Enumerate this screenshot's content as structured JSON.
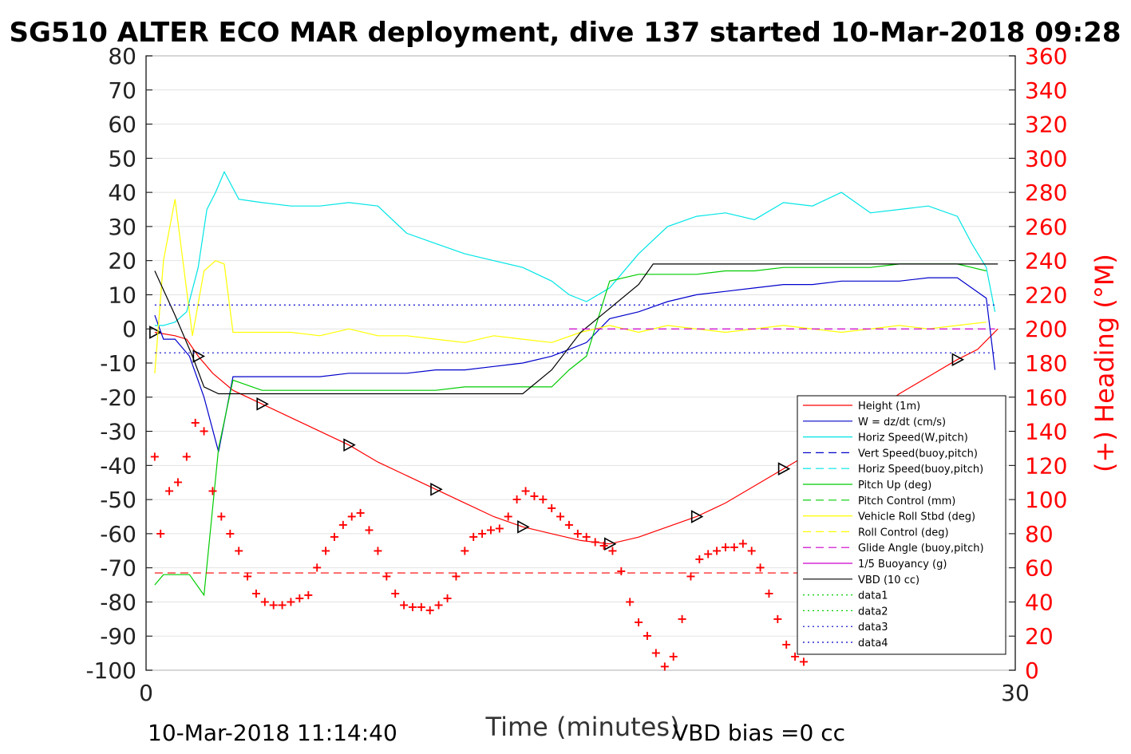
{
  "chart_data": {
    "type": "line",
    "title": "SG510 ALTER ECO MAR deployment, dive 137 started 10-Mar-2018 09:28",
    "xlabel": "Time (minutes)",
    "ylabel_right": "(+) Heading (°M)",
    "footer_left": "10-Mar-2018 11:14:40",
    "footer_right": "VBD bias =0 cc",
    "xlim": [
      0,
      30
    ],
    "ylim": [
      -100,
      80
    ],
    "ylim_right": [
      0,
      360
    ],
    "xticks": [
      "0",
      "30"
    ],
    "yticks_left": [
      "80",
      "70",
      "60",
      "50",
      "40",
      "30",
      "20",
      "10",
      "0",
      "-10",
      "-20",
      "-30",
      "-40",
      "-50",
      "-60",
      "-70",
      "-80",
      "-90",
      "-100"
    ],
    "yticks_right": [
      "360",
      "340",
      "320",
      "300",
      "280",
      "260",
      "240",
      "220",
      "200",
      "180",
      "160",
      "140",
      "120",
      "100",
      "80",
      "60",
      "40",
      "20",
      "0"
    ],
    "grid": "horizontal",
    "legend_position": "lower-right",
    "colors": {
      "height": "#ff0000",
      "w": "#0000cc",
      "horiz": "#00e5e5",
      "pitch": "#00cc00",
      "roll": "#ffff00",
      "glide": "#cc00cc",
      "vbd": "#000000",
      "heading": "#ff0000"
    },
    "legend": [
      {
        "name": "Height (1m)",
        "color": "#ff0000",
        "style": "solid"
      },
      {
        "name": "W = dz/dt (cm/s)",
        "color": "#0000cc",
        "style": "solid"
      },
      {
        "name": "Horiz Speed(W,pitch)",
        "color": "#00e5e5",
        "style": "solid"
      },
      {
        "name": "Vert Speed(buoy,pitch)",
        "color": "#0000cc",
        "style": "dashed"
      },
      {
        "name": "Horiz Speed(buoy,pitch)",
        "color": "#00e5e5",
        "style": "dashed"
      },
      {
        "name": "Pitch Up (deg)",
        "color": "#00cc00",
        "style": "solid"
      },
      {
        "name": "Pitch Control (mm)",
        "color": "#00cc00",
        "style": "dashed"
      },
      {
        "name": "Vehicle Roll Stbd (deg)",
        "color": "#ffff00",
        "style": "solid"
      },
      {
        "name": "Roll Control (deg)",
        "color": "#ffff00",
        "style": "dashed"
      },
      {
        "name": "Glide Angle (buoy,pitch)",
        "color": "#cc00cc",
        "style": "dashed"
      },
      {
        "name": "1/5 Buoyancy (g)",
        "color": "#cc00cc",
        "style": "solid"
      },
      {
        "name": "VBD (10 cc)",
        "color": "#000000",
        "style": "solid"
      },
      {
        "name": "data1",
        "color": "#00cc00",
        "style": "dotted"
      },
      {
        "name": "data2",
        "color": "#00cc00",
        "style": "dotted"
      },
      {
        "name": "data3",
        "color": "#0000cc",
        "style": "dotted"
      },
      {
        "name": "data4",
        "color": "#0000cc",
        "style": "dotted"
      }
    ],
    "series": [
      {
        "name": "Height (1m)",
        "x": [
          0.3,
          1.0,
          1.4,
          1.8,
          2.3,
          3.0,
          4.0,
          5.0,
          6.0,
          7.0,
          8.0,
          9.0,
          10.0,
          11.0,
          12.0,
          13.0,
          14.0,
          15.0,
          16.0,
          17.0,
          18.0,
          19.0,
          20.0,
          21.0,
          22.0,
          23.0,
          24.0,
          25.0,
          26.0,
          27.0,
          28.0,
          28.7,
          29.4
        ],
        "y": [
          -1,
          -2,
          -3,
          -8,
          -13,
          -18,
          -22,
          -26,
          -30,
          -34,
          -39,
          -43,
          -47,
          -51,
          -55,
          -58,
          -60,
          -62,
          -63,
          -61,
          -58,
          -55,
          -51,
          -46,
          -41,
          -36,
          -31,
          -25,
          -19,
          -14,
          -9,
          -6,
          0
        ]
      },
      {
        "name": "W = dz/dt (cm/s)",
        "x": [
          0.3,
          0.6,
          1.0,
          1.5,
          2.0,
          2.5,
          3.0,
          4.0,
          5.0,
          6.0,
          7.0,
          8.0,
          9.0,
          10.0,
          11.0,
          12.0,
          13.0,
          14.0,
          14.6,
          15.2,
          16.0,
          17.0,
          18.0,
          19.0,
          20.0,
          21.0,
          22.0,
          23.0,
          24.0,
          25.0,
          26.0,
          27.0,
          28.0,
          28.5,
          29.0,
          29.3
        ],
        "y": [
          4,
          -3,
          -3,
          -8,
          -20,
          -36,
          -14,
          -14,
          -14,
          -14,
          -13,
          -13,
          -13,
          -12,
          -12,
          -11,
          -10,
          -8,
          -6,
          -4,
          3,
          5,
          8,
          10,
          11,
          12,
          13,
          13,
          14,
          14,
          14,
          15,
          15,
          12,
          9,
          -12
        ]
      },
      {
        "name": "Horiz Speed(W,pitch)",
        "x": [
          0.3,
          0.6,
          1.0,
          1.4,
          1.8,
          2.1,
          2.4,
          2.7,
          3.2,
          4.0,
          5.0,
          6.0,
          7.0,
          8.0,
          9.0,
          10.0,
          11.0,
          12.0,
          13.0,
          14.0,
          14.6,
          15.2,
          16.0,
          17.0,
          18.0,
          19.0,
          20.0,
          21.0,
          22.0,
          23.0,
          24.0,
          25.0,
          26.0,
          27.0,
          28.0,
          28.5,
          29.0,
          29.3
        ],
        "y": [
          1,
          1,
          2,
          5,
          18,
          35,
          40,
          46,
          38,
          37,
          36,
          36,
          37,
          36,
          28,
          25,
          22,
          20,
          18,
          14,
          10,
          8,
          12,
          22,
          30,
          33,
          34,
          32,
          37,
          36,
          40,
          34,
          35,
          36,
          33,
          25,
          18,
          5
        ]
      },
      {
        "name": "Pitch Up (deg)",
        "x": [
          0.3,
          0.6,
          1.0,
          1.5,
          2.0,
          2.5,
          3.0,
          4.0,
          5.0,
          6.0,
          7.0,
          8.0,
          9.0,
          10.0,
          11.0,
          12.0,
          13.0,
          14.0,
          14.6,
          15.2,
          16.0,
          17.0,
          18.0,
          19.0,
          20.0,
          21.0,
          22.0,
          23.0,
          24.0,
          25.0,
          26.0,
          27.0,
          28.0,
          28.5,
          29.0
        ],
        "y": [
          -75,
          -72,
          -72,
          -72,
          -78,
          -35,
          -15,
          -18,
          -18,
          -18,
          -18,
          -18,
          -18,
          -18,
          -17,
          -17,
          -17,
          -17,
          -12,
          -8,
          14,
          16,
          16,
          16,
          17,
          17,
          18,
          18,
          18,
          18,
          19,
          19,
          19,
          18,
          17
        ]
      },
      {
        "name": "Vehicle Roll Stbd (deg)",
        "x": [
          0.3,
          0.6,
          1.0,
          1.3,
          1.6,
          2.0,
          2.4,
          2.7,
          3.0,
          3.5,
          4.0,
          5.0,
          6.0,
          7.0,
          8.0,
          9.0,
          10.0,
          11.0,
          12.0,
          13.0,
          14.0,
          15.0,
          16.0,
          17.0,
          18.0,
          19.0,
          20.0,
          21.0,
          22.0,
          23.0,
          24.0,
          25.0,
          26.0,
          27.0,
          28.0,
          29.0
        ],
        "y": [
          -13,
          20,
          38,
          18,
          -2,
          17,
          20,
          19,
          -1,
          -1,
          -1,
          -1,
          -2,
          0,
          -2,
          -2,
          -3,
          -4,
          -2,
          -3,
          -4,
          -1,
          1,
          -1,
          1,
          0,
          -1,
          0,
          1,
          0,
          -1,
          0,
          1,
          0,
          1,
          2
        ]
      },
      {
        "name": "VBD (10 cc)",
        "x": [
          0.3,
          1.0,
          1.6,
          2.0,
          2.5,
          5.0,
          8.0,
          11.0,
          12.6,
          13.0,
          14.0,
          15.0,
          16.0,
          17.0,
          17.5,
          18.0,
          21.0,
          24.0,
          27.0,
          29.0,
          29.4
        ],
        "y": [
          17,
          4,
          -8,
          -17,
          -19,
          -19,
          -19,
          -19,
          -19,
          -19,
          -12,
          -1,
          6,
          13,
          19,
          19,
          19,
          19,
          19,
          19,
          19
        ]
      },
      {
        "name": "(+) Heading (°M)",
        "axis": "right",
        "x": [
          0.3,
          0.5,
          0.8,
          1.1,
          1.4,
          1.7,
          2.0,
          2.3,
          2.6,
          2.9,
          3.2,
          3.5,
          3.8,
          4.1,
          4.4,
          4.7,
          5.0,
          5.3,
          5.6,
          5.9,
          6.2,
          6.5,
          6.8,
          7.1,
          7.4,
          7.7,
          8.0,
          8.3,
          8.6,
          8.9,
          9.2,
          9.5,
          9.8,
          10.1,
          10.4,
          10.7,
          11.0,
          11.3,
          11.6,
          11.9,
          12.2,
          12.5,
          12.8,
          13.1,
          13.4,
          13.7,
          14.0,
          14.3,
          14.6,
          14.9,
          15.2,
          15.5,
          15.8,
          16.1,
          16.4,
          16.7,
          17.0,
          17.3,
          17.6,
          17.9,
          18.2,
          18.5,
          18.8,
          19.1,
          19.4,
          19.7,
          20.0,
          20.3,
          20.6,
          20.9,
          21.2,
          21.5,
          21.8,
          22.1,
          22.4,
          22.7,
          23.0,
          23.3,
          23.6,
          23.9,
          24.2,
          24.5,
          24.8,
          25.1,
          25.4,
          25.7,
          26.0,
          26.3,
          26.6,
          26.9,
          27.2,
          27.5,
          27.8,
          28.1,
          28.4,
          28.7,
          29.0,
          29.3
        ],
        "y": [
          125,
          80,
          105,
          110,
          125,
          145,
          140,
          105,
          90,
          80,
          70,
          55,
          45,
          40,
          38,
          38,
          40,
          42,
          44,
          60,
          70,
          78,
          85,
          90,
          92,
          82,
          70,
          55,
          45,
          38,
          37,
          37,
          35,
          38,
          42,
          55,
          70,
          78,
          80,
          82,
          83,
          90,
          100,
          105,
          102,
          100,
          95,
          90,
          85,
          80,
          78,
          75,
          73,
          70,
          58,
          40,
          28,
          20,
          10,
          2,
          8,
          30,
          55,
          65,
          68,
          70,
          72,
          72,
          74,
          70,
          60,
          45,
          30,
          15,
          8,
          5,
          18,
          30,
          40,
          45,
          50,
          55,
          60,
          62,
          65,
          66,
          68,
          70,
          72,
          74,
          78,
          85,
          90,
          70,
          55,
          65,
          75,
          80
        ]
      }
    ]
  }
}
